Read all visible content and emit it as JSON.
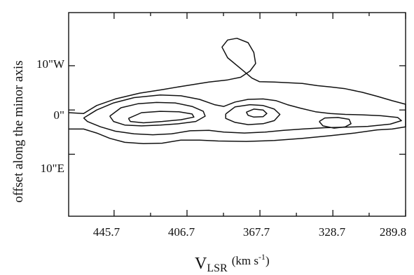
{
  "chart_data": {
    "type": "contour",
    "title": "",
    "xlabel": {
      "main": "V",
      "subscript": "LSR",
      "unit_prefix": "(km s",
      "unit_superscript": "-1",
      "unit_suffix": ")"
    },
    "ylabel": "offset along the minor axis",
    "xaxis": {
      "direction": "decreasing-left-to-right",
      "range": [
        470,
        289.8
      ],
      "tick_values": [
        445.7,
        406.7,
        367.7,
        328.7,
        289.8
      ],
      "tick_labels": [
        "445.7",
        "406.7",
        "367.7",
        "328.7",
        "289.8"
      ],
      "minor_tick_values": [
        426.2,
        387.2,
        348.2,
        309.3
      ]
    },
    "yaxis": {
      "unit": "arcsec",
      "range": [
        -24,
        22
      ],
      "tick_values": [
        10,
        0,
        -10
      ],
      "tick_labels": [
        "10\"W",
        "0\"",
        "10\"E"
      ]
    },
    "grid": false,
    "legend": "none",
    "contours": [
      {
        "level": 1,
        "points": [
          [
            470,
            -0.6
          ],
          [
            462,
            -0.8
          ],
          [
            455,
            1
          ],
          [
            445,
            2.5
          ],
          [
            432,
            3.8
          ],
          [
            420,
            4.6
          ],
          [
            410,
            5.3
          ],
          [
            395,
            6.3
          ],
          [
            385,
            6.8
          ],
          [
            378,
            7.4
          ],
          [
            373,
            8.8
          ],
          [
            370,
            10.5
          ],
          [
            371,
            13
          ],
          [
            374,
            15.2
          ],
          [
            380,
            16.2
          ],
          [
            385,
            15.8
          ],
          [
            388,
            14.2
          ],
          [
            385,
            11.8
          ],
          [
            377,
            9
          ],
          [
            372,
            7.2
          ],
          [
            368,
            6.4
          ],
          [
            360,
            6.3
          ],
          [
            345,
            6
          ],
          [
            337,
            5.5
          ],
          [
            330,
            5.2
          ],
          [
            322,
            4.8
          ],
          [
            313,
            4
          ],
          [
            305,
            3.1
          ],
          [
            297,
            2.1
          ],
          [
            289.8,
            1.3
          ],
          [
            289.8,
            -3.8
          ],
          [
            297,
            -4.3
          ],
          [
            305,
            -4.5
          ],
          [
            317,
            -5.2
          ],
          [
            330,
            -5.8
          ],
          [
            345,
            -6.4
          ],
          [
            360,
            -6.9
          ],
          [
            375,
            -7.1
          ],
          [
            390,
            -7
          ],
          [
            400,
            -6.8
          ],
          [
            410,
            -6.8
          ],
          [
            420,
            -7.5
          ],
          [
            430,
            -7.6
          ],
          [
            440,
            -7.3
          ],
          [
            448,
            -6.4
          ],
          [
            455,
            -5.2
          ],
          [
            462,
            -4.3
          ],
          [
            470,
            -4.3
          ]
        ]
      },
      {
        "level": 2,
        "points": [
          [
            462,
            -1.8
          ],
          [
            455,
            0
          ],
          [
            446,
            1.6
          ],
          [
            435,
            2.8
          ],
          [
            421,
            3.4
          ],
          [
            410,
            3.2
          ],
          [
            400,
            2.4
          ],
          [
            392,
            1.2
          ],
          [
            387,
            0.8
          ],
          [
            381,
            1.8
          ],
          [
            374,
            2.4
          ],
          [
            366,
            2.5
          ],
          [
            359,
            2.1
          ],
          [
            353,
            1.2
          ],
          [
            346,
            0.4
          ],
          [
            338,
            -0.4
          ],
          [
            330,
            -0.8
          ],
          [
            322,
            -1
          ],
          [
            313,
            -1.1
          ],
          [
            303,
            -1.3
          ],
          [
            294,
            -1.7
          ],
          [
            292,
            -2.4
          ],
          [
            298,
            -3.2
          ],
          [
            310,
            -3.7
          ],
          [
            322,
            -3.9
          ],
          [
            333,
            -4
          ],
          [
            345,
            -4.3
          ],
          [
            355,
            -4.6
          ],
          [
            365,
            -5
          ],
          [
            376,
            -5.2
          ],
          [
            387,
            -5
          ],
          [
            395,
            -4.6
          ],
          [
            405,
            -4.7
          ],
          [
            415,
            -5.4
          ],
          [
            425,
            -5.6
          ],
          [
            435,
            -5.4
          ],
          [
            445,
            -4.8
          ],
          [
            453,
            -3.8
          ],
          [
            460,
            -2.6
          ],
          [
            462,
            -1.8
          ]
        ]
      },
      {
        "level": 3,
        "points": [
          [
            448,
            -1.4
          ],
          [
            442,
            0.5
          ],
          [
            433,
            1.4
          ],
          [
            423,
            1.7
          ],
          [
            413,
            1.6
          ],
          [
            404,
            0.8
          ],
          [
            398,
            -0.3
          ],
          [
            397,
            -1.4
          ],
          [
            402,
            -2.6
          ],
          [
            411,
            -3.1
          ],
          [
            421,
            -3.4
          ],
          [
            431,
            -3.6
          ],
          [
            440,
            -3.4
          ],
          [
            446,
            -2.6
          ],
          [
            448,
            -1.4
          ]
        ]
      },
      {
        "level": 4,
        "points": [
          [
            386,
            -0.9
          ],
          [
            381,
            0.7
          ],
          [
            373,
            1.2
          ],
          [
            366,
            1
          ],
          [
            360,
            0.2
          ],
          [
            357,
            -1
          ],
          [
            360,
            -2.4
          ],
          [
            366,
            -3.1
          ],
          [
            374,
            -3.3
          ],
          [
            381,
            -2.8
          ],
          [
            386,
            -1.9
          ],
          [
            386,
            -0.9
          ]
        ]
      },
      {
        "level": 5,
        "points": [
          [
            438,
            -1.9
          ],
          [
            431,
            -0.6
          ],
          [
            421,
            -0.3
          ],
          [
            411,
            -0.4
          ],
          [
            404,
            -0.9
          ],
          [
            403,
            -1.6
          ],
          [
            410,
            -2.2
          ],
          [
            420,
            -2.6
          ],
          [
            430,
            -2.9
          ],
          [
            437,
            -2.6
          ],
          [
            438,
            -1.9
          ]
        ]
      },
      {
        "level": 5,
        "points": [
          [
            375,
            -0.5
          ],
          [
            371,
            0.2
          ],
          [
            366,
            0
          ],
          [
            364,
            -0.8
          ],
          [
            366,
            -1.5
          ],
          [
            371,
            -1.6
          ],
          [
            374,
            -1.2
          ],
          [
            375,
            -0.5
          ]
        ]
      },
      {
        "level": 4,
        "points": [
          [
            336,
            -2.6
          ],
          [
            333,
            -1.8
          ],
          [
            326,
            -1.7
          ],
          [
            320,
            -2.1
          ],
          [
            319,
            -3.1
          ],
          [
            322,
            -3.8
          ],
          [
            328,
            -4.1
          ],
          [
            334,
            -3.6
          ],
          [
            336,
            -2.6
          ]
        ]
      }
    ]
  }
}
